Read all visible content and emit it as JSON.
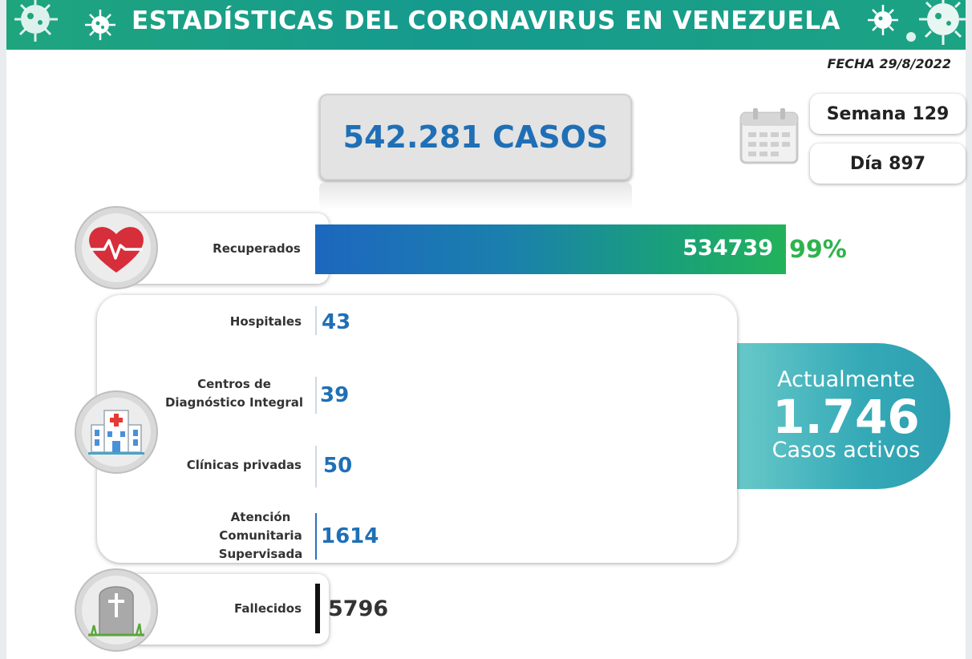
{
  "header": {
    "title": "ESTADÍSTICAS DEL CORONAVIRUS EN VENEZUELA"
  },
  "date": "FECHA 29/8/2022",
  "total_cases": "542.281 CASOS",
  "week": "Semana 129",
  "day": "Día 897",
  "recovered": {
    "label": "Recuperados",
    "value": "534739",
    "percent": "99%"
  },
  "locations": [
    {
      "label": "Hospitales",
      "value": "43"
    },
    {
      "label": "Centros de Diagnóstico Integral",
      "value": "39"
    },
    {
      "label": "Clínicas privadas",
      "value": "50"
    },
    {
      "label": "Atención Comunitaria Supervisada",
      "value": "1614"
    }
  ],
  "active": {
    "line1": "Actualmente",
    "number": "1.746",
    "line3": "Casos activos"
  },
  "deaths": {
    "label": "Fallecidos",
    "value": "5796"
  },
  "icons": [
    "virus-icon",
    "calendar-icon",
    "heart-pulse-icon",
    "hospital-icon",
    "tombstone-icon"
  ],
  "colors": {
    "header": "#159a8e",
    "accent_blue": "#1f6fb6",
    "bar_start": "#1c67be",
    "bar_end": "#22b25a",
    "active_bubble": "#35aab7"
  },
  "chart_data": {
    "type": "bar",
    "categories": [
      "Recuperados",
      "Fallecidos"
    ],
    "values": [
      534739,
      5796
    ],
    "breakdown": {
      "categories": [
        "Hospitales",
        "Centros de Diagnóstico Integral",
        "Clínicas privadas",
        "Atención Comunitaria Supervisada"
      ],
      "values": [
        43,
        39,
        50,
        1614
      ]
    },
    "total": 542281,
    "active": 1746,
    "recovered_percent": 99
  }
}
